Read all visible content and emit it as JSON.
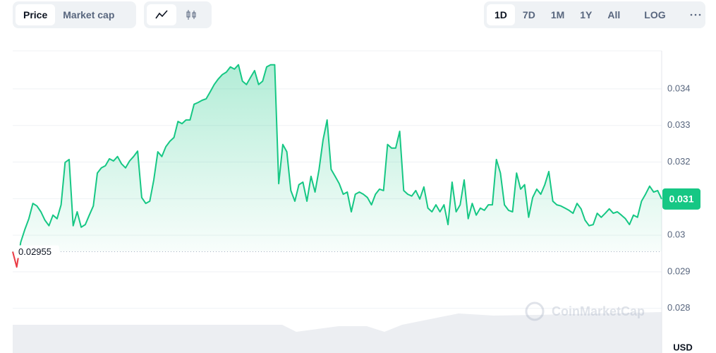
{
  "toolbar": {
    "view_tabs": [
      "Price",
      "Market cap"
    ],
    "ranges": [
      "1D",
      "7D",
      "1M",
      "1Y",
      "All"
    ],
    "scale": "LOG"
  },
  "watermark": "CoinMarketCap",
  "chart_data": {
    "type": "line",
    "values": [
      0.02955,
      0.02913,
      0.02981,
      0.03015,
      0.03045,
      0.03087,
      0.0308,
      0.03064,
      0.03041,
      0.03026,
      0.03055,
      0.03045,
      0.03083,
      0.03199,
      0.03207,
      0.03026,
      0.03064,
      0.03022,
      0.03029,
      0.03055,
      0.0308,
      0.0317,
      0.03184,
      0.0319,
      0.03209,
      0.03203,
      0.03215,
      0.03195,
      0.03184,
      0.03203,
      0.03215,
      0.0323,
      0.03103,
      0.03087,
      0.03093,
      0.03151,
      0.03228,
      0.03215,
      0.03242,
      0.03257,
      0.03267,
      0.03311,
      0.03305,
      0.03315,
      0.03315,
      0.03358,
      0.03363,
      0.03369,
      0.03373,
      0.03392,
      0.03412,
      0.03427,
      0.03439,
      0.03446,
      0.0346,
      0.03454,
      0.03466,
      0.03421,
      0.03412,
      0.03431,
      0.0345,
      0.03412,
      0.03421,
      0.0346,
      0.03466,
      0.03466,
      0.03141,
      0.03248,
      0.03228,
      0.03122,
      0.03093,
      0.03138,
      0.03145,
      0.03093,
      0.03161,
      0.03118,
      0.0318,
      0.03261,
      0.03315,
      0.0318,
      0.03161,
      0.03141,
      0.03112,
      0.03118,
      0.03064,
      0.03112,
      0.03118,
      0.03112,
      0.03103,
      0.03083,
      0.03112,
      0.03126,
      0.03122,
      0.03248,
      0.03238,
      0.03238,
      0.03284,
      0.03122,
      0.03112,
      0.03107,
      0.03122,
      0.03099,
      0.03132,
      0.03074,
      0.03064,
      0.03083,
      0.03064,
      0.03083,
      0.03029,
      0.03145,
      0.03064,
      0.03083,
      0.03151,
      0.03045,
      0.03087,
      0.03055,
      0.03074,
      0.03068,
      0.03083,
      0.03083,
      0.03207,
      0.0317,
      0.03083,
      0.03068,
      0.03064,
      0.0317,
      0.03126,
      0.03138,
      0.03049,
      0.03103,
      0.03126,
      0.03112,
      0.03138,
      0.03174,
      0.03093,
      0.03083,
      0.0308,
      0.03074,
      0.03068,
      0.0306,
      0.03087,
      0.03072,
      0.03041,
      0.03026,
      0.03029,
      0.0306,
      0.03049,
      0.0306,
      0.03072,
      0.0306,
      0.03064,
      0.03055,
      0.03045,
      0.03029,
      0.03055,
      0.03049,
      0.03093,
      0.03112,
      0.03134,
      0.03118,
      0.03122,
      0.03099
    ],
    "color": "#16c784",
    "below_color": "#ea3943",
    "ylim": [
      0.02678,
      0.03504
    ],
    "yticks": [
      0.028,
      0.029,
      0.03,
      0.031,
      0.032,
      0.033,
      0.034
    ],
    "grid": true,
    "baseline": {
      "value": 0.02955,
      "label": "0.02955"
    },
    "last_label": "0.031",
    "currency": "USD"
  }
}
